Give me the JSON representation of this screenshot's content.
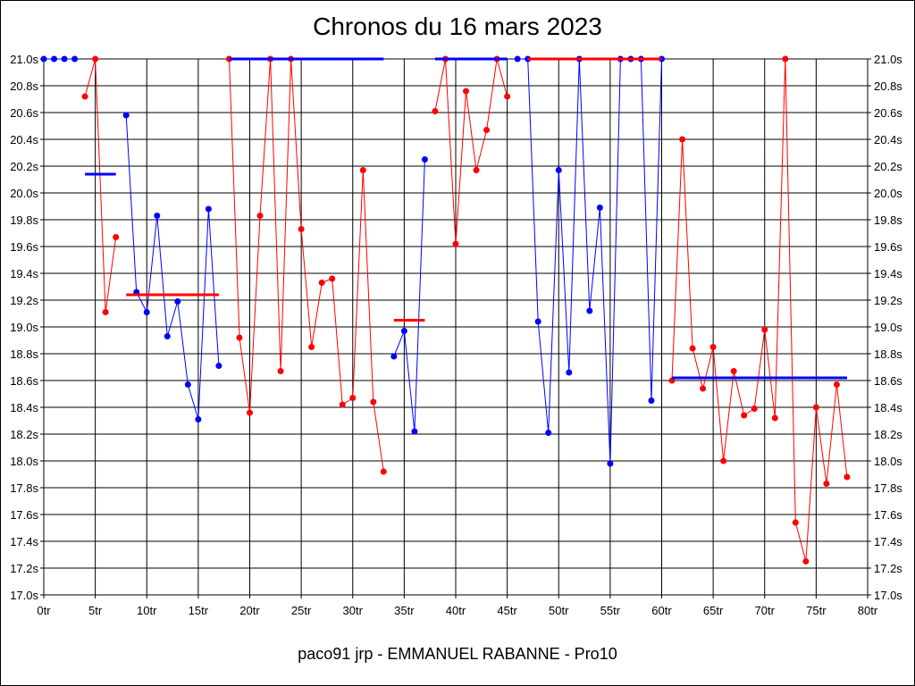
{
  "chart_data": {
    "type": "line",
    "title": "Chronos du 16 mars 2023",
    "footer": "paco91 jrp - EMMANUEL RABANNE - Pro10",
    "xlabel": "",
    "ylabel": "",
    "xlim": [
      0,
      80
    ],
    "ylim": [
      17.0,
      21.0
    ],
    "x_ticks": [
      0,
      5,
      10,
      15,
      20,
      25,
      30,
      35,
      40,
      45,
      50,
      55,
      60,
      65,
      70,
      75,
      80
    ],
    "x_tick_labels": [
      "0tr",
      "5tr",
      "10tr",
      "15tr",
      "20tr",
      "25tr",
      "30tr",
      "35tr",
      "40tr",
      "45tr",
      "50tr",
      "55tr",
      "60tr",
      "65tr",
      "70tr",
      "75tr",
      "80tr"
    ],
    "y_ticks": [
      17.0,
      17.2,
      17.4,
      17.6,
      17.8,
      18.0,
      18.2,
      18.4,
      18.6,
      18.8,
      19.0,
      19.2,
      19.4,
      19.6,
      19.8,
      20.0,
      20.2,
      20.4,
      20.6,
      20.8,
      21.0
    ],
    "y_tick_labels": [
      "17.0s",
      "17.2s",
      "17.4s",
      "17.6s",
      "17.8s",
      "18.0s",
      "18.2s",
      "18.4s",
      "18.6s",
      "18.8s",
      "19.0s",
      "19.2s",
      "19.4s",
      "19.6s",
      "19.8s",
      "20.0s",
      "20.2s",
      "20.4s",
      "20.6s",
      "20.8s",
      "21.0s"
    ],
    "grid": true,
    "colors": {
      "blue": "#0000ff",
      "red": "#ff0000"
    },
    "segments": [
      {
        "color": "blue",
        "points": [
          [
            0,
            21.0
          ],
          [
            1,
            21.0
          ],
          [
            2,
            21.0
          ],
          [
            3,
            21.0
          ]
        ],
        "avg": null
      },
      {
        "color": "red",
        "points": [
          [
            4,
            20.72
          ],
          [
            5,
            21.0
          ],
          [
            6,
            19.11
          ],
          [
            7,
            19.67
          ]
        ],
        "avg": null
      },
      {
        "color": "blue",
        "points": [
          [
            8,
            20.58
          ],
          [
            9,
            19.26
          ],
          [
            10,
            19.11
          ],
          [
            11,
            19.83
          ],
          [
            12,
            18.93
          ],
          [
            13,
            19.19
          ],
          [
            14,
            18.57
          ],
          [
            15,
            18.31
          ],
          [
            16,
            19.88
          ],
          [
            17,
            18.71
          ]
        ],
        "avg": null
      },
      {
        "color": "red",
        "points": [
          [
            18,
            21.0
          ],
          [
            19,
            18.92
          ],
          [
            20,
            18.36
          ],
          [
            21,
            19.83
          ],
          [
            22,
            21.0
          ],
          [
            23,
            18.67
          ],
          [
            24,
            21.0
          ],
          [
            25,
            19.73
          ],
          [
            26,
            18.85
          ],
          [
            27,
            19.33
          ],
          [
            28,
            19.36
          ],
          [
            29,
            18.42
          ],
          [
            30,
            18.47
          ],
          [
            31,
            20.17
          ],
          [
            32,
            18.44
          ],
          [
            33,
            17.92
          ]
        ],
        "avg": null
      },
      {
        "color": "blue",
        "points": [
          [
            18,
            21.0
          ],
          [
            33,
            21.0
          ]
        ],
        "avg": null
      },
      {
        "color": "blue",
        "points": [
          [
            34,
            18.78
          ],
          [
            35,
            18.97
          ],
          [
            36,
            18.22
          ],
          [
            37,
            20.25
          ]
        ],
        "avg": null
      },
      {
        "color": "red",
        "points": [
          [
            38,
            20.61
          ],
          [
            39,
            21.0
          ],
          [
            40,
            19.62
          ],
          [
            41,
            20.76
          ],
          [
            42,
            20.17
          ],
          [
            43,
            20.47
          ],
          [
            44,
            21.0
          ],
          [
            45,
            20.72
          ]
        ],
        "avg": null
      },
      {
        "color": "blue",
        "points": [
          [
            38,
            21.0
          ],
          [
            45,
            21.0
          ]
        ],
        "avg": null
      },
      {
        "color": "blue",
        "points": [
          [
            46,
            21.0
          ],
          [
            47,
            21.0
          ],
          [
            48,
            19.04
          ],
          [
            49,
            18.21
          ],
          [
            50,
            20.17
          ],
          [
            51,
            18.66
          ],
          [
            52,
            21.0
          ],
          [
            53,
            19.12
          ],
          [
            54,
            19.89
          ],
          [
            55,
            17.98
          ],
          [
            56,
            21.0
          ],
          [
            57,
            21.0
          ],
          [
            58,
            21.0
          ],
          [
            59,
            18.45
          ],
          [
            60,
            21.0
          ]
        ],
        "avg": null
      },
      {
        "color": "red",
        "points": [
          [
            47,
            21.0
          ],
          [
            60,
            21.0
          ]
        ],
        "avg": null
      },
      {
        "color": "red",
        "points": [
          [
            61,
            18.6
          ],
          [
            62,
            20.4
          ],
          [
            63,
            18.84
          ],
          [
            64,
            18.54
          ],
          [
            65,
            18.85
          ],
          [
            66,
            18.0
          ],
          [
            67,
            18.67
          ],
          [
            68,
            18.34
          ],
          [
            69,
            18.39
          ],
          [
            70,
            18.98
          ],
          [
            71,
            18.32
          ],
          [
            72,
            21.0
          ],
          [
            73,
            17.54
          ],
          [
            74,
            17.25
          ],
          [
            75,
            18.4
          ],
          [
            76,
            17.83
          ],
          [
            77,
            18.57
          ],
          [
            78,
            17.88
          ]
        ],
        "avg": null
      }
    ],
    "averages": [
      {
        "color": "blue",
        "x0": 4,
        "x1": 7,
        "y": 20.14
      },
      {
        "color": "red",
        "x0": 8,
        "x1": 17,
        "y": 19.24
      },
      {
        "color": "red",
        "x0": 34,
        "x1": 37,
        "y": 19.05
      },
      {
        "color": "blue",
        "x0": 61,
        "x1": 78,
        "y": 18.62
      }
    ]
  }
}
